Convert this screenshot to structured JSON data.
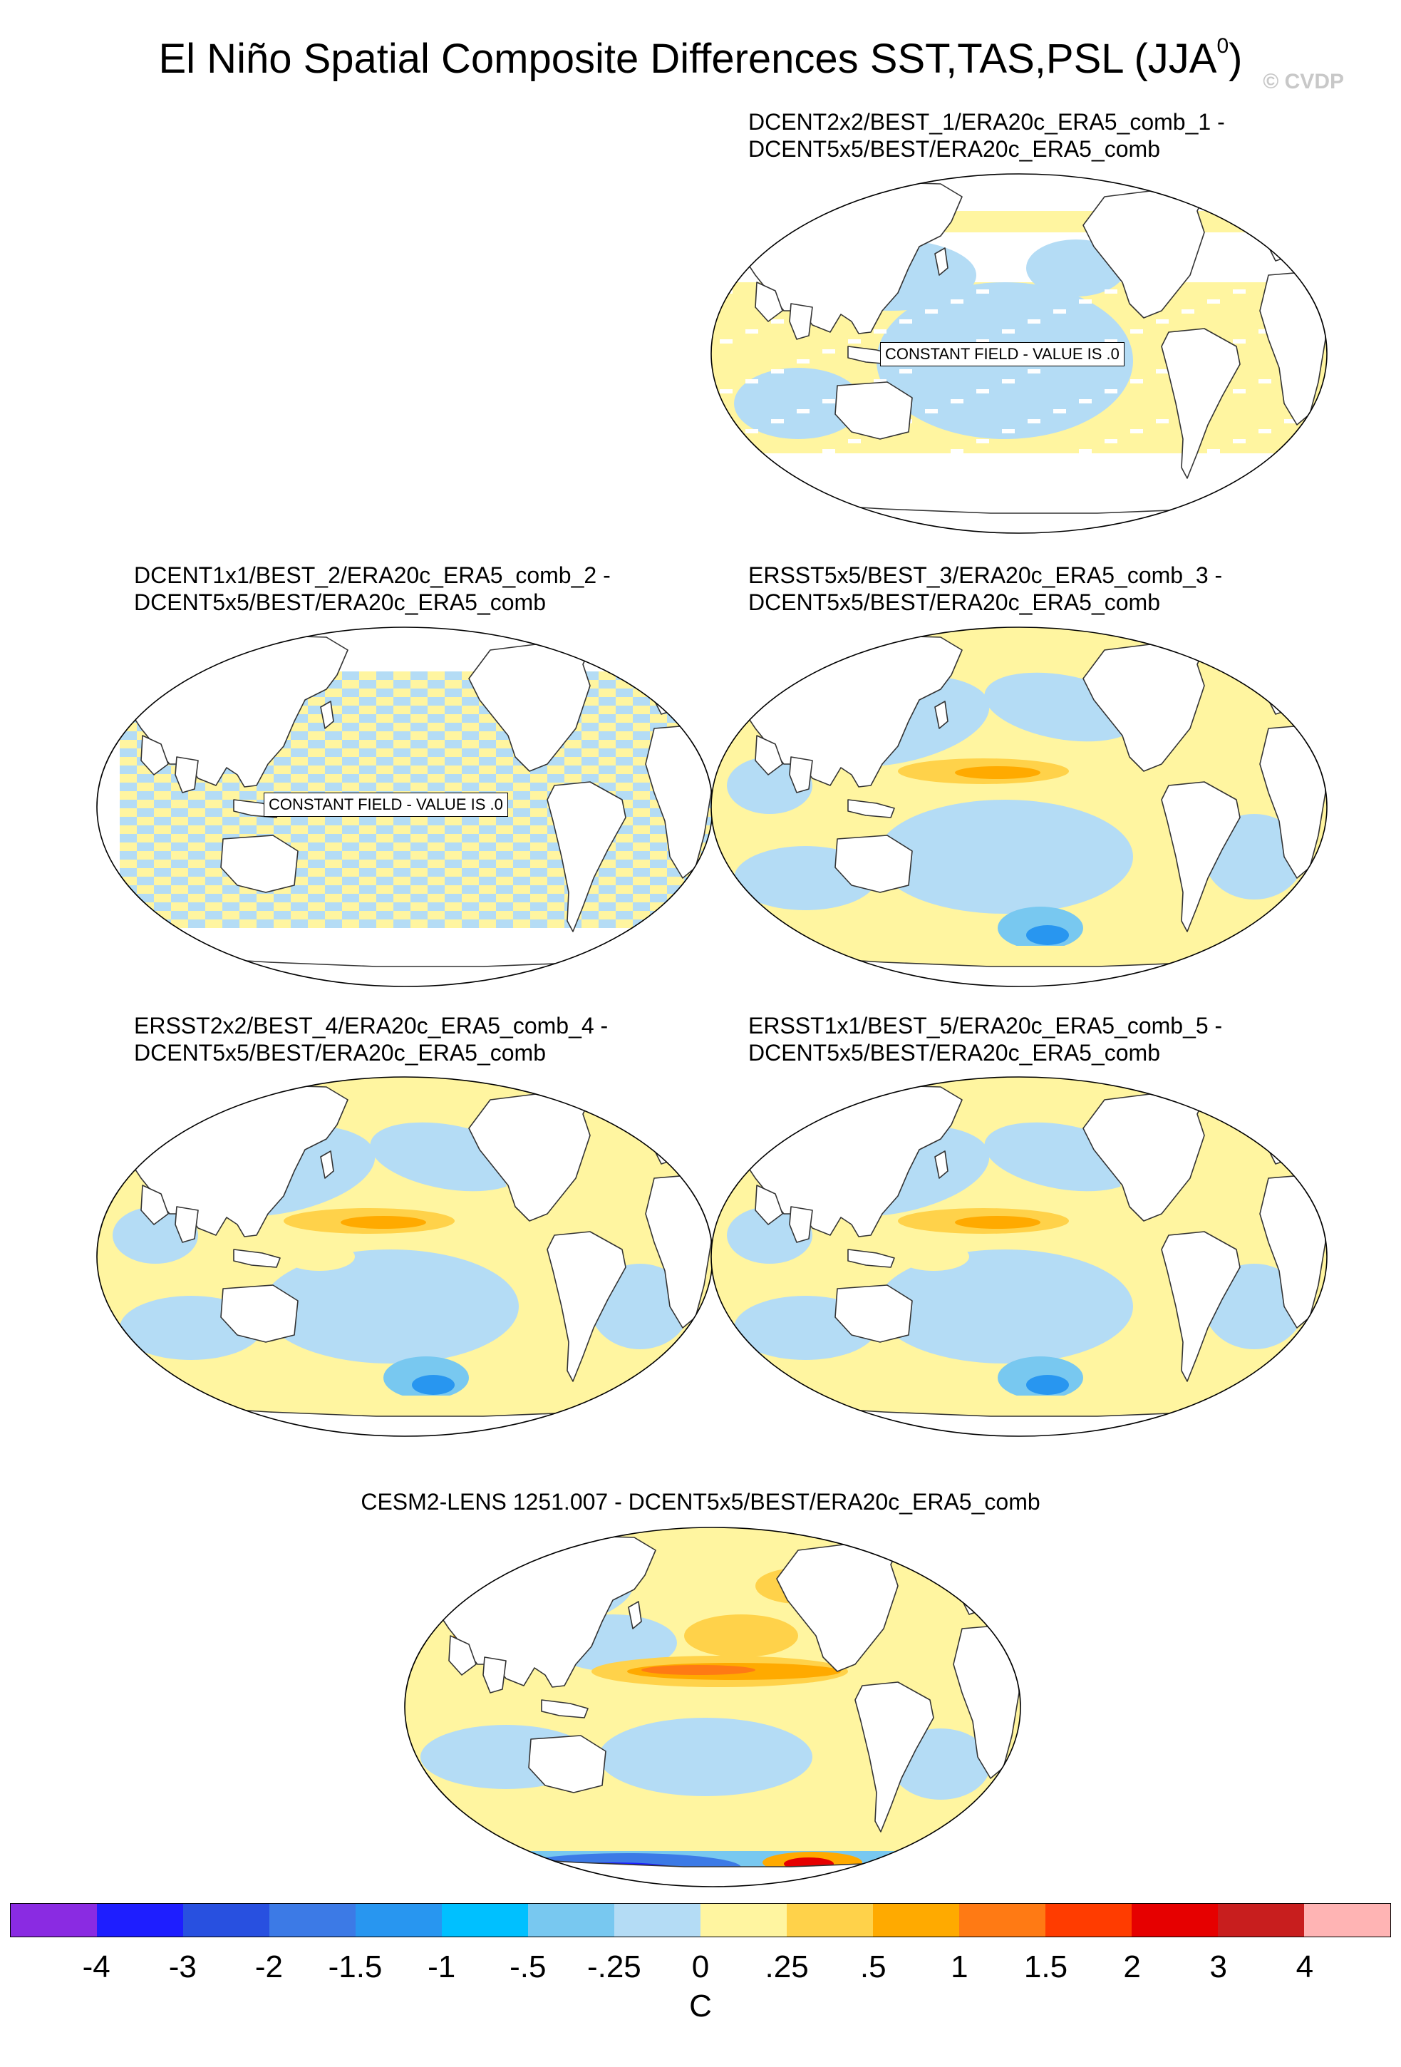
{
  "title_main": "El Niño Spatial Composite Differences SST,TAS,PSL (JJA",
  "title_sup": "0",
  "title_close": ")",
  "watermark": "© CVDP",
  "panels": [
    {
      "line1": "DCENT2x2/BEST_1/ERA20c_ERA5_comb_1 -",
      "line2": "DCENT5x5/BEST/ERA20c_ERA5_comb",
      "pattern": "block",
      "constant": "CONSTANT FIELD - VALUE IS .0"
    },
    {
      "line1": "DCENT1x1/BEST_2/ERA20c_ERA5_comb_2 -",
      "line2": "DCENT5x5/BEST/ERA20c_ERA5_comb",
      "pattern": "stripe",
      "constant": "CONSTANT FIELD - VALUE IS .0"
    },
    {
      "line1": "ERSST5x5/BEST_3/ERA20c_ERA5_comb_3 -",
      "line2": "DCENT5x5/BEST/ERA20c_ERA5_comb",
      "pattern": "blob1",
      "constant": ""
    },
    {
      "line1": "ERSST2x2/BEST_4/ERA20c_ERA5_comb_4 -",
      "line2": "DCENT5x5/BEST/ERA20c_ERA5_comb",
      "pattern": "blob2",
      "constant": ""
    },
    {
      "line1": "ERSST1x1/BEST_5/ERA20c_ERA5_comb_5 -",
      "line2": "DCENT5x5/BEST/ERA20c_ERA5_comb",
      "pattern": "blob2",
      "constant": ""
    },
    {
      "line1": "CESM2-LENS 1251.007 - DCENT5x5/BEST/ERA20c_ERA5_comb",
      "line2": "",
      "pattern": "cesm",
      "constant": ""
    }
  ],
  "colorbar": {
    "colors": [
      "#8a2be2",
      "#1e1eff",
      "#2850e0",
      "#3c7ae6",
      "#2896f0",
      "#00c0ff",
      "#78c8f0",
      "#b4dcf5",
      "#fff5a0",
      "#ffd24a",
      "#ffaa00",
      "#ff7a14",
      "#ff3c00",
      "#e60000",
      "#c81e1e",
      "#ffb4b4"
    ],
    "ticks": [
      "-4",
      "-3",
      "-2",
      "-1.5",
      "-1",
      "-.5",
      "-.25",
      "0",
      ".25",
      ".5",
      "1",
      "1.5",
      "2",
      "3",
      "4"
    ],
    "units": "C"
  }
}
